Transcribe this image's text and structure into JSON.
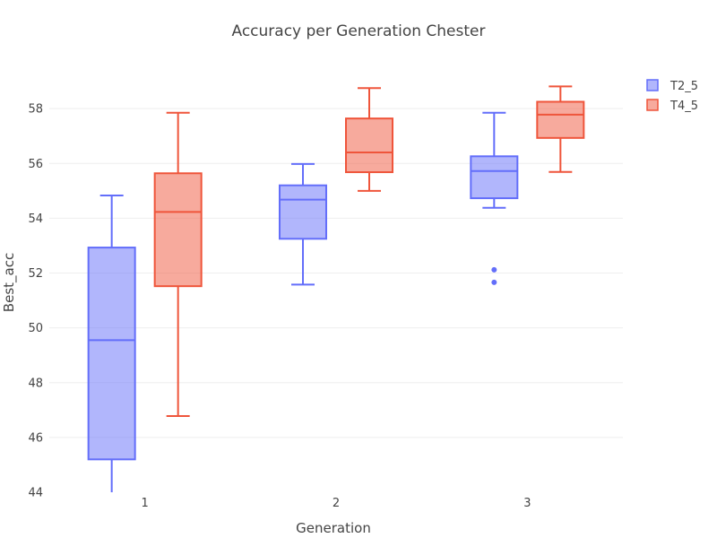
{
  "chart_data": {
    "type": "box",
    "title": "Accuracy per Generation Chester",
    "xlabel": "Generation",
    "ylabel": "Best_acc",
    "categories": [
      "1",
      "2",
      "3"
    ],
    "ylim": [
      44,
      60
    ],
    "yticks": [
      44,
      46,
      48,
      50,
      52,
      54,
      56,
      58
    ],
    "grid": true,
    "legend_position": "top-right",
    "series": [
      {
        "name": "T2_5",
        "color": "#636efa",
        "fill": "rgba(99,110,250,0.5)",
        "boxes": [
          {
            "category": "1",
            "min": 44.0,
            "q1": 45.2,
            "median": 49.55,
            "q3": 52.93,
            "max": 54.83,
            "outliers": []
          },
          {
            "category": "2",
            "min": 51.58,
            "q1": 53.25,
            "median": 54.68,
            "q3": 55.2,
            "max": 55.98,
            "outliers": []
          },
          {
            "category": "3",
            "min": 54.38,
            "q1": 54.73,
            "median": 55.72,
            "q3": 56.26,
            "max": 57.85,
            "outliers": [
              52.12,
              51.66
            ]
          }
        ]
      },
      {
        "name": "T4_5",
        "color": "#ef553b",
        "fill": "rgba(239,85,59,0.5)",
        "boxes": [
          {
            "category": "1",
            "min": 46.78,
            "q1": 51.52,
            "median": 54.23,
            "q3": 55.64,
            "max": 57.85,
            "outliers": []
          },
          {
            "category": "2",
            "min": 55.0,
            "q1": 55.68,
            "median": 56.4,
            "q3": 57.64,
            "max": 58.75,
            "outliers": []
          },
          {
            "category": "3",
            "min": 55.69,
            "q1": 56.93,
            "median": 57.78,
            "q3": 58.25,
            "max": 58.81,
            "outliers": []
          }
        ]
      }
    ]
  }
}
